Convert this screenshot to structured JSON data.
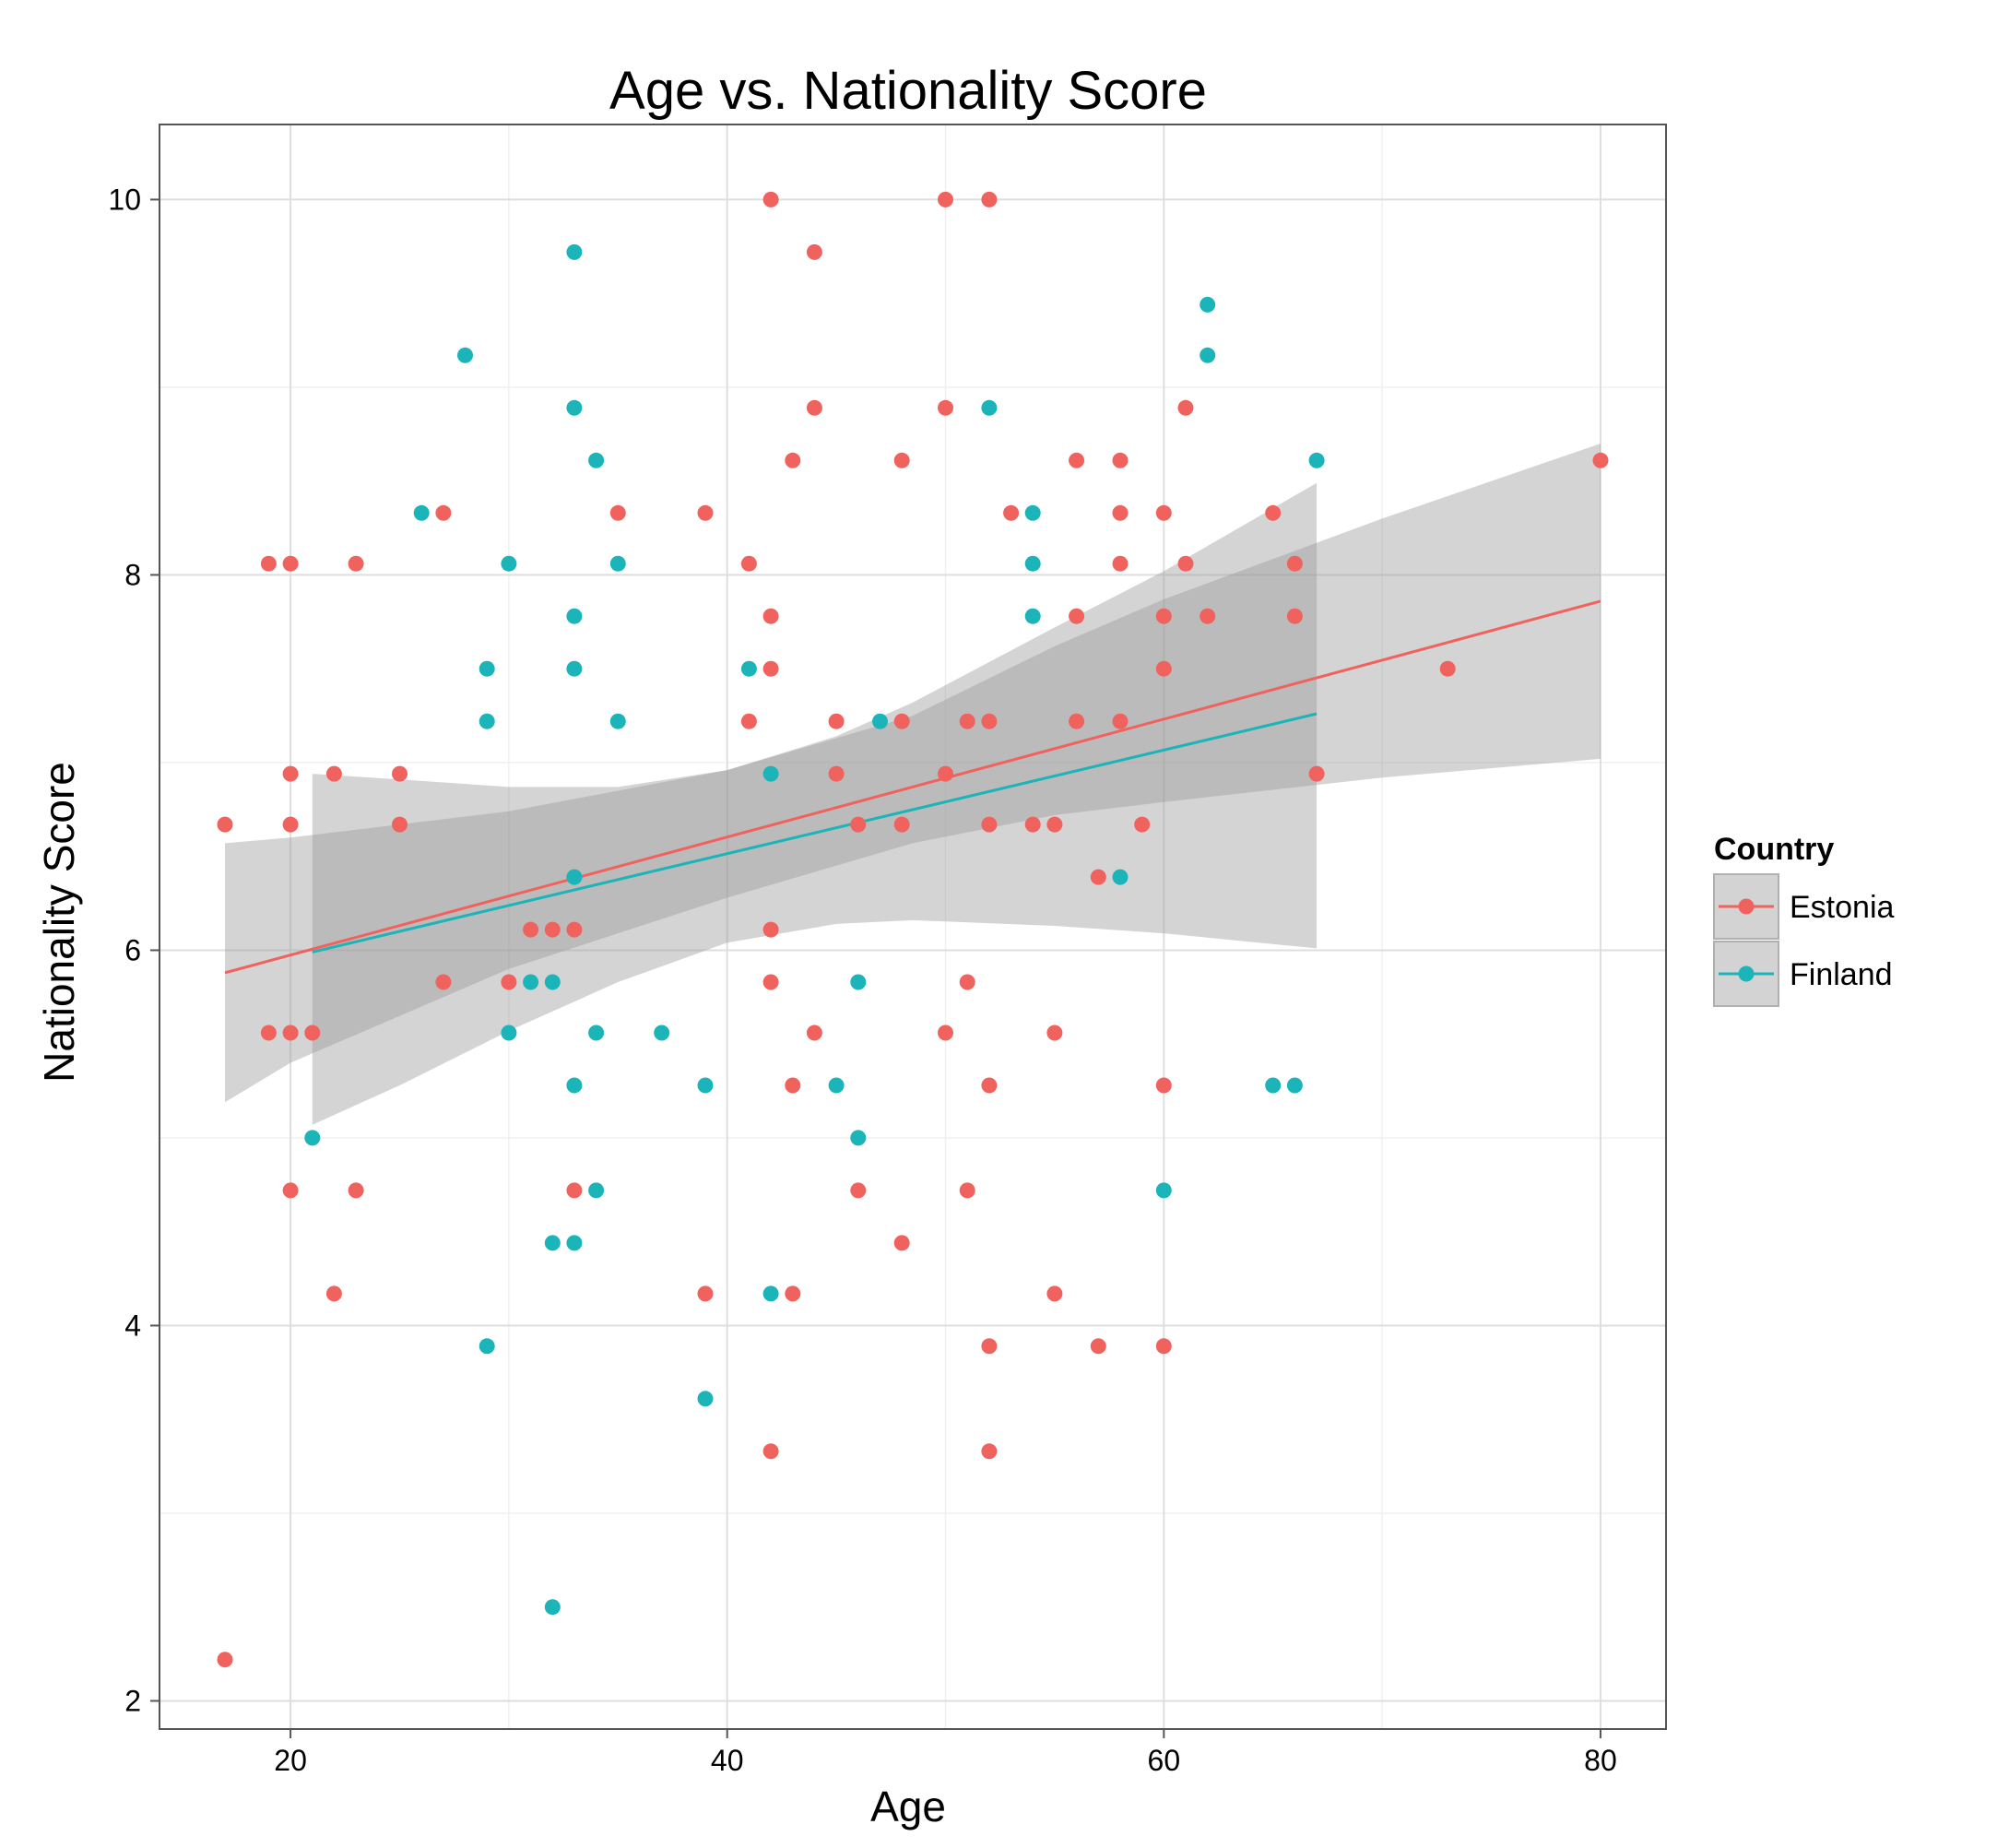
{
  "chart_data": {
    "type": "scatter",
    "title": "Age vs. Nationality Score",
    "xlabel": "Age",
    "ylabel": "Nationality Score",
    "xlim": [
      14,
      83
    ],
    "ylim": [
      1.85,
      10.4
    ],
    "x_ticks": [
      20,
      40,
      60,
      80
    ],
    "x_tick_labels": [
      "20",
      "40",
      "60",
      "80"
    ],
    "y_ticks": [
      2,
      4,
      6,
      8,
      10
    ],
    "y_tick_labels": [
      "2",
      "4",
      "6",
      "8",
      "10"
    ],
    "grid": true,
    "legend": {
      "title": "Country",
      "position": "right"
    },
    "series": [
      {
        "name": "Estonia",
        "color": "#F0625E",
        "points": [
          [
            17,
            6.67
          ],
          [
            17,
            2.22
          ],
          [
            19,
            8.06
          ],
          [
            19,
            5.56
          ],
          [
            20,
            8.06
          ],
          [
            20,
            6.94
          ],
          [
            20,
            6.67
          ],
          [
            20,
            5.56
          ],
          [
            20,
            4.72
          ],
          [
            21,
            5.56
          ],
          [
            22,
            6.94
          ],
          [
            22,
            4.17
          ],
          [
            23,
            8.06
          ],
          [
            23,
            4.72
          ],
          [
            25,
            6.94
          ],
          [
            25,
            6.67
          ],
          [
            27,
            8.33
          ],
          [
            27,
            5.83
          ],
          [
            30,
            5.83
          ],
          [
            31,
            6.11
          ],
          [
            32,
            6.11
          ],
          [
            33,
            6.11
          ],
          [
            33,
            4.72
          ],
          [
            35,
            8.33
          ],
          [
            39,
            8.33
          ],
          [
            39,
            4.17
          ],
          [
            41,
            8.06
          ],
          [
            41,
            7.22
          ],
          [
            42,
            10.0
          ],
          [
            42,
            7.78
          ],
          [
            42,
            7.5
          ],
          [
            42,
            6.11
          ],
          [
            42,
            5.83
          ],
          [
            42,
            3.33
          ],
          [
            43,
            8.61
          ],
          [
            43,
            5.28
          ],
          [
            43,
            4.17
          ],
          [
            44,
            9.72
          ],
          [
            44,
            8.89
          ],
          [
            44,
            5.56
          ],
          [
            45,
            7.22
          ],
          [
            45,
            6.94
          ],
          [
            46,
            6.67
          ],
          [
            46,
            4.72
          ],
          [
            48,
            8.61
          ],
          [
            48,
            7.22
          ],
          [
            48,
            6.67
          ],
          [
            48,
            4.44
          ],
          [
            50,
            10.0
          ],
          [
            50,
            8.89
          ],
          [
            50,
            6.94
          ],
          [
            50,
            5.56
          ],
          [
            51,
            7.22
          ],
          [
            51,
            5.83
          ],
          [
            51,
            4.72
          ],
          [
            52,
            10.0
          ],
          [
            52,
            7.22
          ],
          [
            52,
            6.67
          ],
          [
            52,
            5.28
          ],
          [
            52,
            3.89
          ],
          [
            52,
            3.33
          ],
          [
            53,
            8.33
          ],
          [
            54,
            6.67
          ],
          [
            55,
            6.67
          ],
          [
            55,
            5.56
          ],
          [
            55,
            4.17
          ],
          [
            56,
            8.61
          ],
          [
            56,
            7.78
          ],
          [
            56,
            7.22
          ],
          [
            57,
            6.39
          ],
          [
            57,
            3.89
          ],
          [
            58,
            8.61
          ],
          [
            58,
            8.33
          ],
          [
            58,
            8.06
          ],
          [
            58,
            7.22
          ],
          [
            59,
            6.67
          ],
          [
            60,
            8.33
          ],
          [
            60,
            7.78
          ],
          [
            60,
            7.5
          ],
          [
            60,
            5.28
          ],
          [
            60,
            3.89
          ],
          [
            61,
            8.89
          ],
          [
            61,
            8.06
          ],
          [
            62,
            7.78
          ],
          [
            65,
            8.33
          ],
          [
            66,
            8.06
          ],
          [
            66,
            7.78
          ],
          [
            67,
            6.94
          ],
          [
            73,
            7.5
          ],
          [
            80,
            8.61
          ]
        ],
        "fit": {
          "x": [
            17,
            80
          ],
          "y": [
            5.88,
            7.86
          ]
        },
        "ci": {
          "x": [
            17,
            20,
            30,
            40,
            48.5,
            55,
            60,
            70,
            80
          ],
          "lower": [
            5.19,
            5.4,
            5.9,
            6.28,
            6.57,
            6.72,
            6.79,
            6.92,
            7.02
          ],
          "upper": [
            6.57,
            6.6,
            6.74,
            6.96,
            7.25,
            7.62,
            7.87,
            8.3,
            8.7
          ]
        }
      },
      {
        "name": "Finland",
        "color": "#1BB5B9",
        "points": [
          [
            21,
            5.0
          ],
          [
            26,
            8.33
          ],
          [
            28,
            9.17
          ],
          [
            29,
            7.5
          ],
          [
            29,
            7.22
          ],
          [
            29,
            3.89
          ],
          [
            30,
            8.06
          ],
          [
            30,
            5.56
          ],
          [
            31,
            5.83
          ],
          [
            32,
            5.83
          ],
          [
            32,
            4.44
          ],
          [
            32,
            2.5
          ],
          [
            33,
            9.72
          ],
          [
            33,
            8.89
          ],
          [
            33,
            7.78
          ],
          [
            33,
            7.5
          ],
          [
            33,
            6.39
          ],
          [
            33,
            5.28
          ],
          [
            33,
            4.44
          ],
          [
            34,
            8.61
          ],
          [
            34,
            5.56
          ],
          [
            34,
            4.72
          ],
          [
            35,
            8.06
          ],
          [
            35,
            7.22
          ],
          [
            37,
            5.56
          ],
          [
            39,
            5.28
          ],
          [
            39,
            3.61
          ],
          [
            41,
            7.5
          ],
          [
            42,
            6.94
          ],
          [
            42,
            4.17
          ],
          [
            45,
            5.28
          ],
          [
            46,
            5.83
          ],
          [
            46,
            5.0
          ],
          [
            47,
            7.22
          ],
          [
            52,
            8.89
          ],
          [
            54,
            8.33
          ],
          [
            54,
            8.06
          ],
          [
            54,
            7.78
          ],
          [
            58,
            6.39
          ],
          [
            60,
            4.72
          ],
          [
            62,
            9.44
          ],
          [
            62,
            9.17
          ],
          [
            65,
            5.28
          ],
          [
            66,
            5.28
          ],
          [
            67,
            8.61
          ]
        ],
        "fit": {
          "x": [
            21,
            67
          ],
          "y": [
            5.99,
            7.26
          ]
        },
        "ci": {
          "x": [
            21,
            25,
            30,
            35,
            40,
            45,
            48.5,
            55,
            60,
            67
          ],
          "lower": [
            5.07,
            5.28,
            5.57,
            5.83,
            6.04,
            6.14,
            6.16,
            6.13,
            6.09,
            6.01
          ],
          "upper": [
            6.94,
            6.91,
            6.87,
            6.87,
            6.96,
            7.14,
            7.32,
            7.72,
            8.02,
            8.49
          ]
        }
      }
    ]
  }
}
